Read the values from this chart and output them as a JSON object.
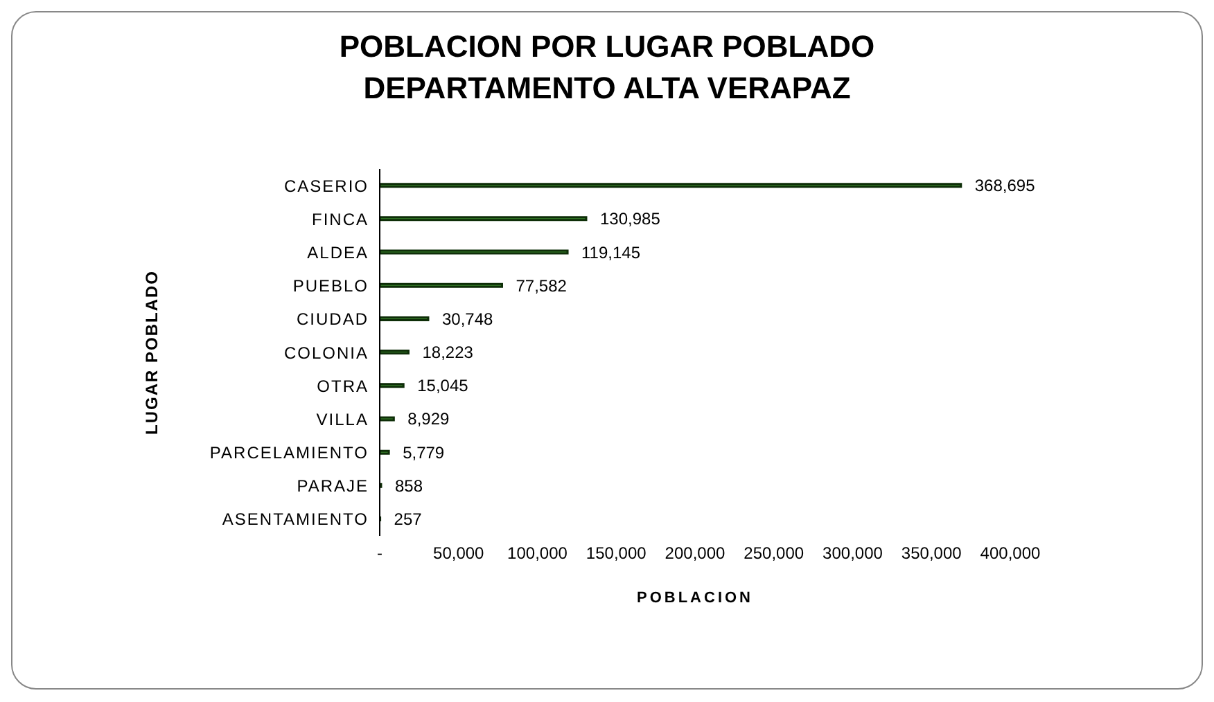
{
  "chart_data": {
    "type": "bar",
    "orientation": "horizontal",
    "title": "POBLACION POR LUGAR POBLADO\nDEPARTAMENTO ALTA VERAPAZ",
    "xlabel": "POBLACION",
    "ylabel": "LUGAR POBLADO",
    "categories": [
      "CASERIO",
      "FINCA",
      "ALDEA",
      "PUEBLO",
      "CIUDAD",
      "COLONIA",
      "OTRA",
      "VILLA",
      "PARCELAMIENTO",
      "PARAJE",
      "ASENTAMIENTO"
    ],
    "values": [
      368695,
      130985,
      119145,
      77582,
      30748,
      18223,
      15045,
      8929,
      5779,
      858,
      257
    ],
    "value_labels": [
      "368,695",
      "130,985",
      "119,145",
      "77,582",
      "30,748",
      "18,223",
      "15,045",
      "8,929",
      "5,779",
      "858",
      "257"
    ],
    "color": "#3d8a2e",
    "xlim": [
      0,
      400000
    ],
    "xticks": [
      {
        "value": 0,
        "label": "-"
      },
      {
        "value": 50000,
        "label": "50,000"
      },
      {
        "value": 100000,
        "label": "100,000"
      },
      {
        "value": 150000,
        "label": "150,000"
      },
      {
        "value": 200000,
        "label": "200,000"
      },
      {
        "value": 250000,
        "label": "250,000"
      },
      {
        "value": 300000,
        "label": "300,000"
      },
      {
        "value": 350000,
        "label": "350,000"
      },
      {
        "value": 400000,
        "label": "400,000"
      }
    ],
    "grid": false,
    "legend": false
  }
}
